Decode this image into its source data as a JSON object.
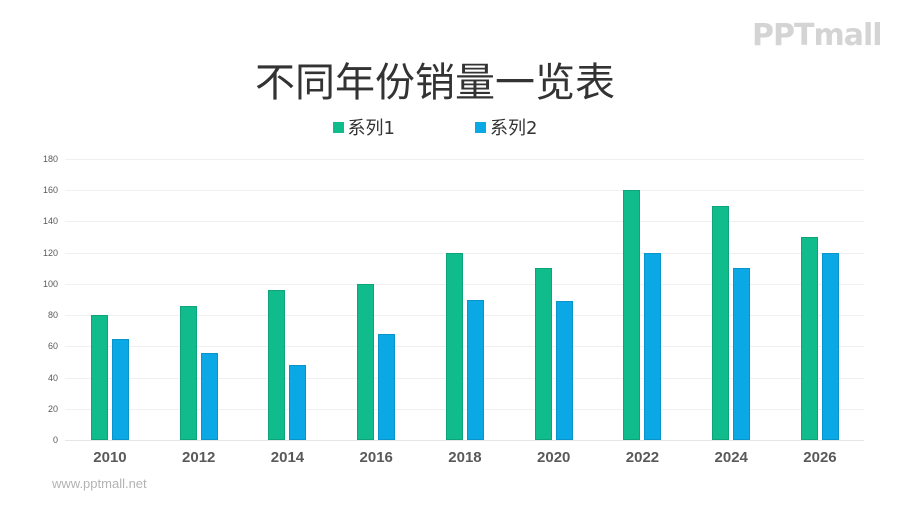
{
  "logo": {
    "text": "PPTmall"
  },
  "footer": {
    "url_text": "www.pptmall.net"
  },
  "colors": {
    "series1": "#10BC8B",
    "series2": "#0BA8E6",
    "series1_border": "#0DA47A",
    "series2_border": "#0A94CC"
  },
  "chart_data": {
    "type": "bar",
    "title": "不同年份销量一览表",
    "xlabel": "",
    "ylabel": "",
    "categories": [
      "2010",
      "2012",
      "2014",
      "2016",
      "2018",
      "2020",
      "2022",
      "2024",
      "2026"
    ],
    "series": [
      {
        "name": "系列1",
        "values": [
          80,
          86,
          96,
          100,
          120,
          110,
          160,
          150,
          130
        ]
      },
      {
        "name": "系列2",
        "values": [
          65,
          56,
          48,
          68,
          90,
          89,
          120,
          110,
          120
        ]
      }
    ],
    "ylim": [
      0,
      180
    ],
    "yticks": [
      0,
      20,
      40,
      60,
      80,
      100,
      120,
      140,
      160,
      180
    ],
    "grid": true,
    "legend_position": "top"
  }
}
